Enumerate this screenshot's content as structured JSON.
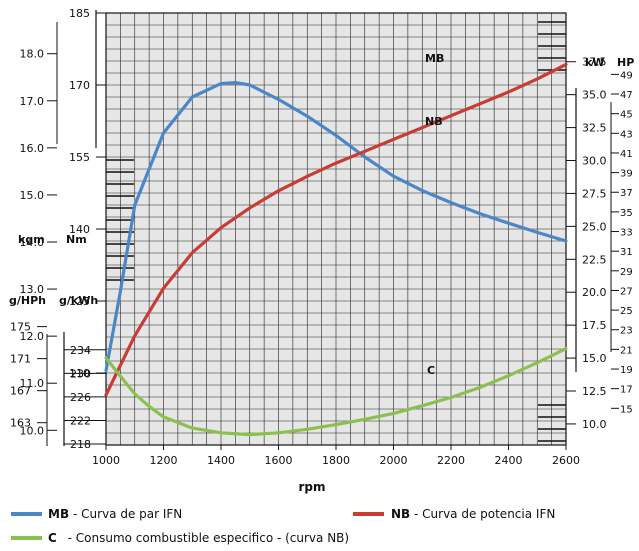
{
  "chart_data": {
    "type": "line",
    "xlabel": "rpm",
    "x_ticks": [
      1000,
      1200,
      1400,
      1600,
      1800,
      2000,
      2200,
      2400,
      2600
    ],
    "xlim": [
      1000,
      2600
    ],
    "torque_axis": {
      "unit_kgm": "kgm",
      "unit_nm": "Nm",
      "range_nm": [
        95,
        185
      ],
      "nm_ticks": [
        "185",
        "170",
        "155",
        "140",
        "125",
        "110"
      ],
      "kgm_ticks": [
        "18.0",
        "17.0",
        "16.0",
        "15.0",
        "14.0",
        "13.0",
        "12.0",
        "11.0",
        "10.0"
      ]
    },
    "consumption_axis": {
      "unit_gph": "g/HPh",
      "unit_gkwh": "g/kWh",
      "range_gkwh": [
        218,
        236
      ],
      "gkwh_ticks": [
        "234",
        "230",
        "226",
        "222",
        "218"
      ],
      "gph_ticks": [
        "175",
        "171",
        "167",
        "163"
      ]
    },
    "power_axis": {
      "unit_kw": "kW",
      "unit_hp": "HP",
      "range_kw": [
        8.4,
        41.2
      ],
      "kw_ticks": [
        "37.5",
        "35.0",
        "32.5",
        "30.0",
        "27.5",
        "25.0",
        "22.5",
        "20.0",
        "17.5",
        "15.0",
        "12.5",
        "10.0"
      ],
      "hp_ticks": [
        "49",
        "47",
        "45",
        "43",
        "41",
        "39",
        "37",
        "35",
        "33",
        "31",
        "29",
        "27",
        "25",
        "23",
        "21",
        "19",
        "17",
        "15"
      ]
    },
    "series": [
      {
        "name": "MB",
        "axis": "torque_nm",
        "color": "#4a86c8",
        "x": [
          1000,
          1050,
          1100,
          1200,
          1300,
          1400,
          1450,
          1500,
          1600,
          1700,
          1800,
          1900,
          2000,
          2100,
          2200,
          2300,
          2400,
          2500,
          2600
        ],
        "y": [
          110.5,
          127,
          145,
          160,
          167.5,
          170.3,
          170.5,
          170,
          167,
          163.5,
          159.5,
          155,
          151,
          148,
          145.5,
          143.2,
          141.2,
          139.3,
          137.5
        ]
      },
      {
        "name": "NB",
        "axis": "power_kw",
        "color": "#c83c36",
        "x": [
          1000,
          1100,
          1200,
          1300,
          1400,
          1500,
          1600,
          1700,
          1800,
          1900,
          2000,
          2100,
          2200,
          2300,
          2400,
          2500,
          2600
        ],
        "y": [
          12.2,
          16.7,
          20.3,
          23.0,
          24.9,
          26.4,
          27.7,
          28.8,
          29.8,
          30.7,
          31.6,
          32.5,
          33.4,
          34.3,
          35.2,
          36.2,
          37.3
        ]
      },
      {
        "name": "C",
        "axis": "consumption_gkwh",
        "color": "#8cc04e",
        "x": [
          1000,
          1050,
          1100,
          1150,
          1200,
          1300,
          1400,
          1500,
          1600,
          1700,
          1800,
          1900,
          2000,
          2100,
          2200,
          2300,
          2400,
          2500,
          2600
        ],
        "y": [
          232.6,
          229.5,
          226.5,
          224.4,
          222.6,
          220.7,
          219.9,
          219.6,
          219.9,
          220.5,
          221.3,
          222.2,
          223.2,
          224.5,
          225.9,
          227.6,
          229.6,
          231.8,
          234.2
        ]
      }
    ],
    "curve_labels": {
      "mb": "MB",
      "nb": "NB",
      "c": "C"
    },
    "grid": true,
    "legend": {
      "position": "bottom",
      "items": [
        {
          "key": "MB",
          "text": "- Curva de par IFN",
          "color": "#4a86c8"
        },
        {
          "key": "NB",
          "text": "- Curva de potencia IFN",
          "color": "#c83c36"
        },
        {
          "key": "C",
          "text": "  - Consumo combustible especifico - (curva NB)",
          "color": "#8cc04e"
        }
      ]
    }
  }
}
